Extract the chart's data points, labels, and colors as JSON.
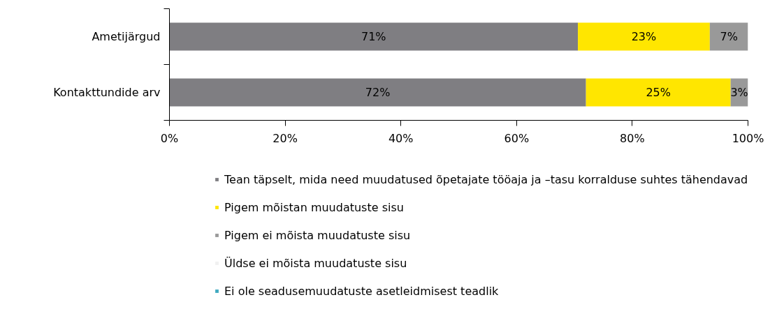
{
  "chart_data": {
    "type": "bar",
    "orientation": "horizontal",
    "stacked": true,
    "categories": [
      "Ametijärgud",
      "Kontakttundide arv"
    ],
    "xlim": [
      0,
      100
    ],
    "xticks": [
      {
        "value": 0,
        "label": "0%"
      },
      {
        "value": 20,
        "label": "20%"
      },
      {
        "value": 40,
        "label": "40%"
      },
      {
        "value": 60,
        "label": "60%"
      },
      {
        "value": 80,
        "label": "80%"
      },
      {
        "value": 100,
        "label": "100%"
      }
    ],
    "grid": false,
    "legend": "bottom",
    "series": [
      {
        "name": "Tean täpselt, mida need muudatused õpetajate tööaja ja –tasu korralduse suhtes tähendavad",
        "color": "#7f7e82",
        "values": [
          70.6,
          72
        ],
        "value_labels": [
          "71%",
          "72%"
        ]
      },
      {
        "name": "Pigem mõistan muudatuste sisu",
        "color": "#ffe600",
        "values": [
          22.8,
          25
        ],
        "value_labels": [
          "23%",
          "25%"
        ]
      },
      {
        "name": "Pigem ei mõista muudatuste sisu",
        "color": "#999999",
        "values": [
          6.6,
          3
        ],
        "value_labels": [
          "7%",
          "3%"
        ]
      },
      {
        "name": "Üldse ei mõista muudatuste sisu",
        "color": "#f0f0f0",
        "values": [
          null,
          null
        ]
      },
      {
        "name": "Ei ole seadusemuudatuste asetleidmisest teadlik",
        "color": "#3fa9c0",
        "values": [
          null,
          null
        ]
      }
    ]
  }
}
